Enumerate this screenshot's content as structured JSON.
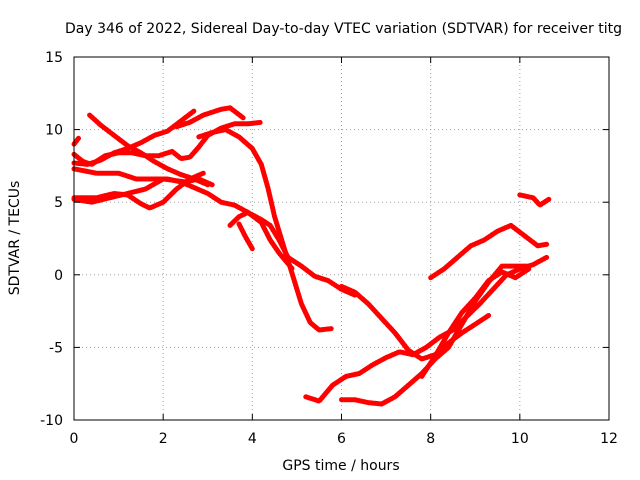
{
  "chart_data": {
    "type": "scatter",
    "title": "Day 346 of 2022, Sidereal Day-to-day VTEC variation (SDTVAR) for receiver titg",
    "xlabel": "GPS time / hours",
    "ylabel": "SDTVAR / TECUs",
    "xlim": [
      0,
      12
    ],
    "ylim": [
      -10,
      15
    ],
    "xticks": [
      0,
      2,
      4,
      6,
      8,
      10,
      12
    ],
    "yticks": [
      -10,
      -5,
      0,
      5,
      10,
      15
    ],
    "grid": true,
    "marker": "plus",
    "color": "#ff0000",
    "series": [
      {
        "points": [
          [
            0.35,
            11.0
          ],
          [
            0.6,
            10.3
          ],
          [
            0.9,
            9.6
          ],
          [
            1.2,
            8.9
          ],
          [
            1.5,
            8.4
          ],
          [
            1.8,
            7.8
          ],
          [
            2.1,
            7.3
          ],
          [
            2.4,
            6.9
          ],
          [
            2.7,
            6.6
          ],
          [
            3.0,
            6.2
          ]
        ]
      },
      {
        "points": [
          [
            0.0,
            9.0
          ],
          [
            0.1,
            9.4
          ]
        ]
      },
      {
        "points": [
          [
            0.0,
            8.3
          ],
          [
            0.2,
            7.8
          ],
          [
            0.4,
            7.6
          ],
          [
            0.7,
            8.2
          ],
          [
            1.0,
            8.4
          ],
          [
            1.3,
            8.4
          ],
          [
            1.6,
            8.2
          ],
          [
            1.9,
            8.2
          ],
          [
            2.2,
            8.5
          ],
          [
            2.4,
            8.0
          ],
          [
            2.6,
            8.1
          ],
          [
            2.8,
            8.8
          ],
          [
            3.0,
            9.6
          ],
          [
            3.3,
            10.1
          ],
          [
            3.6,
            10.4
          ],
          [
            3.9,
            10.4
          ],
          [
            4.2,
            10.5
          ]
        ]
      },
      {
        "points": [
          [
            0.0,
            7.7
          ],
          [
            0.3,
            7.6
          ],
          [
            0.6,
            7.9
          ],
          [
            0.9,
            8.4
          ],
          [
            1.2,
            8.7
          ],
          [
            1.5,
            9.1
          ],
          [
            1.8,
            9.6
          ],
          [
            2.1,
            9.9
          ],
          [
            2.4,
            10.6
          ],
          [
            2.7,
            11.3
          ]
        ]
      },
      {
        "points": [
          [
            0.0,
            7.3
          ],
          [
            0.5,
            7.0
          ],
          [
            1.0,
            7.0
          ],
          [
            1.4,
            6.6
          ],
          [
            1.8,
            6.6
          ],
          [
            2.1,
            6.6
          ],
          [
            2.4,
            6.4
          ],
          [
            2.7,
            6.0
          ],
          [
            3.0,
            5.6
          ],
          [
            3.3,
            5.0
          ],
          [
            3.6,
            4.8
          ],
          [
            3.9,
            4.3
          ],
          [
            4.2,
            3.8
          ],
          [
            4.4,
            3.4
          ],
          [
            4.6,
            2.4
          ],
          [
            4.8,
            1.2
          ],
          [
            5.1,
            0.6
          ],
          [
            5.4,
            -0.1
          ],
          [
            5.7,
            -0.4
          ],
          [
            6.0,
            -1.0
          ],
          [
            6.3,
            -1.4
          ]
        ]
      },
      {
        "points": [
          [
            0.0,
            5.2
          ],
          [
            0.4,
            5.0
          ],
          [
            0.8,
            5.3
          ],
          [
            1.2,
            5.6
          ],
          [
            1.6,
            5.9
          ],
          [
            2.0,
            6.6
          ],
          [
            2.5,
            6.4
          ],
          [
            2.8,
            6.6
          ],
          [
            3.1,
            6.2
          ]
        ]
      },
      {
        "points": [
          [
            0.0,
            5.3
          ],
          [
            0.5,
            5.3
          ],
          [
            0.9,
            5.6
          ],
          [
            1.2,
            5.5
          ],
          [
            1.5,
            4.9
          ],
          [
            1.7,
            4.6
          ],
          [
            2.0,
            5.0
          ],
          [
            2.3,
            5.9
          ],
          [
            2.6,
            6.6
          ],
          [
            2.9,
            7.0
          ]
        ]
      },
      {
        "points": [
          [
            2.3,
            10.2
          ],
          [
            2.6,
            10.5
          ],
          [
            2.9,
            11.0
          ],
          [
            3.1,
            11.2
          ],
          [
            3.3,
            11.4
          ],
          [
            3.5,
            11.5
          ],
          [
            3.8,
            10.8
          ]
        ]
      },
      {
        "points": [
          [
            2.8,
            9.5
          ],
          [
            3.1,
            9.8
          ],
          [
            3.4,
            10.0
          ],
          [
            3.7,
            9.5
          ],
          [
            4.0,
            8.7
          ],
          [
            4.2,
            7.6
          ],
          [
            4.35,
            6.0
          ],
          [
            4.5,
            4.0
          ],
          [
            4.7,
            2.0
          ],
          [
            4.9,
            0.0
          ],
          [
            5.1,
            -2.0
          ],
          [
            5.3,
            -3.3
          ],
          [
            5.5,
            -3.8
          ],
          [
            5.8,
            -3.7
          ]
        ]
      },
      {
        "points": [
          [
            3.5,
            3.4
          ],
          [
            3.7,
            4.0
          ],
          [
            3.9,
            4.3
          ],
          [
            4.2,
            3.6
          ],
          [
            4.4,
            2.4
          ],
          [
            4.6,
            1.5
          ],
          [
            4.9,
            0.4
          ]
        ]
      },
      {
        "points": [
          [
            3.7,
            3.5
          ],
          [
            3.85,
            2.6
          ],
          [
            4.0,
            1.8
          ]
        ]
      },
      {
        "points": [
          [
            6.0,
            -0.8
          ],
          [
            6.3,
            -1.2
          ],
          [
            6.6,
            -2.0
          ],
          [
            6.9,
            -3.0
          ],
          [
            7.2,
            -4.0
          ],
          [
            7.5,
            -5.2
          ],
          [
            7.8,
            -5.8
          ],
          [
            8.1,
            -5.5
          ],
          [
            8.4,
            -4.7
          ],
          [
            8.7,
            -4.0
          ],
          [
            9.0,
            -3.4
          ],
          [
            9.3,
            -2.8
          ]
        ]
      },
      {
        "points": [
          [
            5.2,
            -8.4
          ],
          [
            5.5,
            -8.7
          ],
          [
            5.8,
            -7.6
          ],
          [
            6.1,
            -7.0
          ],
          [
            6.4,
            -6.8
          ],
          [
            6.7,
            -6.2
          ],
          [
            7.0,
            -5.7
          ],
          [
            7.3,
            -5.3
          ],
          [
            7.6,
            -5.5
          ],
          [
            7.9,
            -5.0
          ],
          [
            8.2,
            -4.3
          ],
          [
            8.5,
            -3.8
          ],
          [
            8.8,
            -2.9
          ],
          [
            9.1,
            -2.0
          ],
          [
            9.4,
            -1.0
          ],
          [
            9.7,
            0.0
          ],
          [
            10.0,
            0.4
          ],
          [
            10.3,
            0.7
          ],
          [
            10.6,
            1.2
          ]
        ]
      },
      {
        "points": [
          [
            6.0,
            -8.6
          ],
          [
            6.3,
            -8.6
          ],
          [
            6.6,
            -8.8
          ],
          [
            6.9,
            -8.9
          ],
          [
            7.2,
            -8.4
          ],
          [
            7.5,
            -7.6
          ],
          [
            7.8,
            -6.8
          ],
          [
            8.1,
            -5.8
          ],
          [
            8.4,
            -5.0
          ],
          [
            8.7,
            -3.4
          ],
          [
            9.0,
            -1.8
          ],
          [
            9.3,
            -0.5
          ],
          [
            9.6,
            0.6
          ],
          [
            9.9,
            0.6
          ],
          [
            10.2,
            0.6
          ]
        ]
      },
      {
        "points": [
          [
            7.8,
            -7.0
          ],
          [
            8.1,
            -5.6
          ],
          [
            8.4,
            -4.0
          ],
          [
            8.7,
            -2.6
          ],
          [
            9.0,
            -1.6
          ],
          [
            9.3,
            -0.4
          ],
          [
            9.6,
            0.2
          ],
          [
            9.9,
            -0.2
          ],
          [
            10.2,
            0.4
          ]
        ]
      },
      {
        "points": [
          [
            8.0,
            -0.2
          ],
          [
            8.3,
            0.4
          ],
          [
            8.6,
            1.2
          ],
          [
            8.9,
            2.0
          ],
          [
            9.2,
            2.4
          ],
          [
            9.5,
            3.0
          ],
          [
            9.8,
            3.4
          ],
          [
            10.1,
            2.7
          ],
          [
            10.4,
            2.0
          ],
          [
            10.6,
            2.1
          ]
        ]
      },
      {
        "points": [
          [
            10.0,
            5.5
          ],
          [
            10.3,
            5.3
          ],
          [
            10.45,
            4.8
          ],
          [
            10.65,
            5.2
          ]
        ]
      }
    ]
  }
}
